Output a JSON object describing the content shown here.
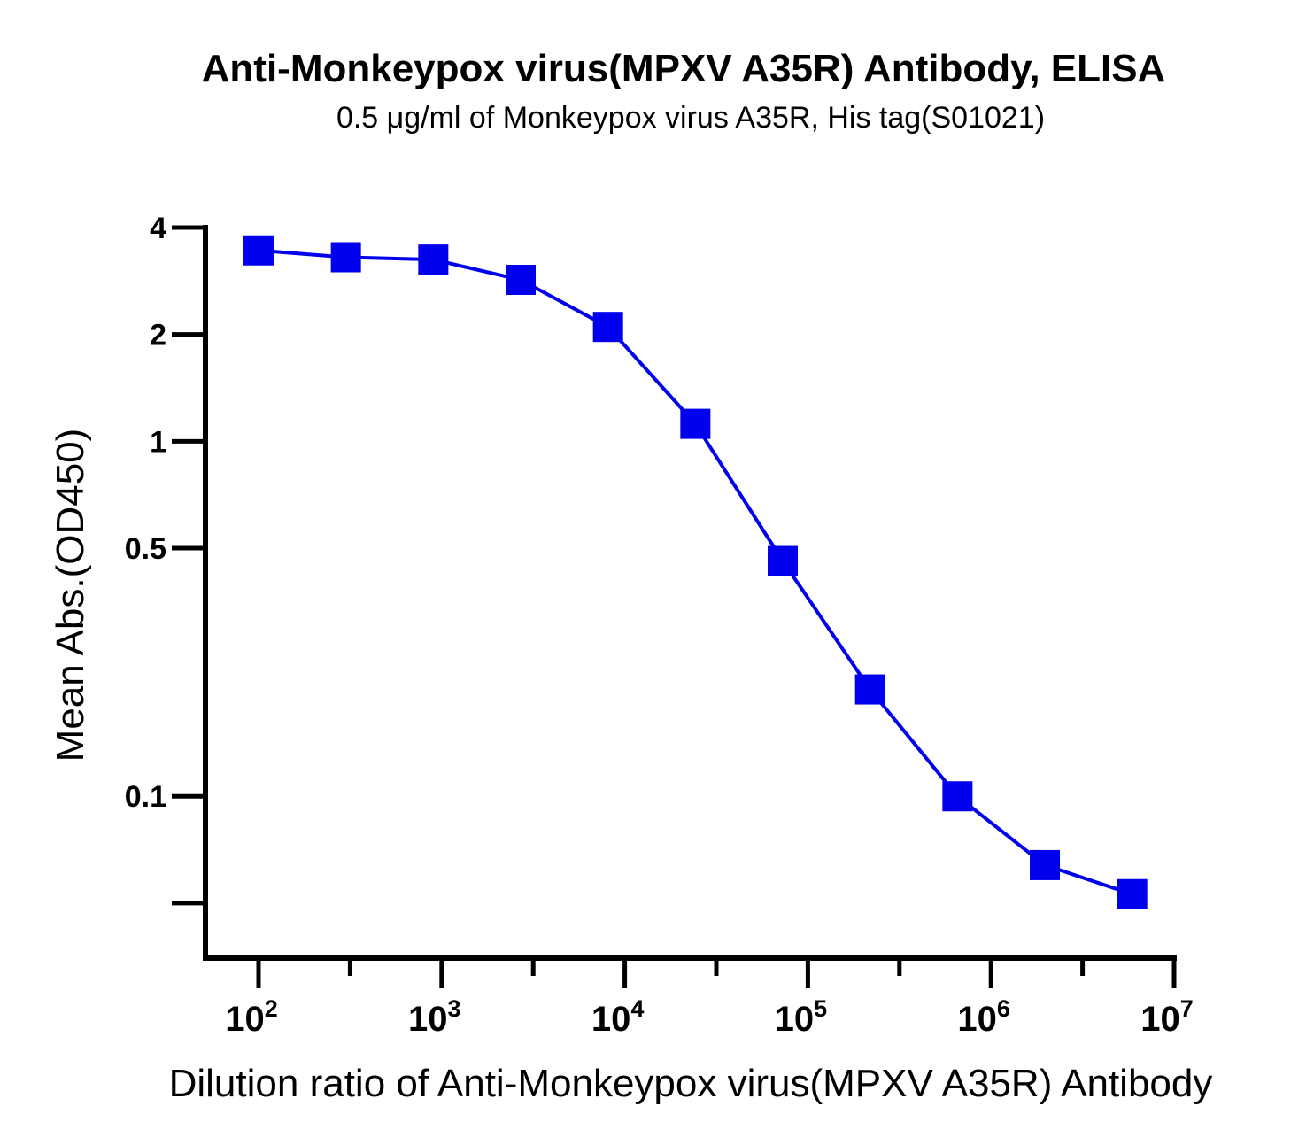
{
  "chart_data": {
    "type": "line",
    "title": "Anti-Monkeypox virus(MPXV A35R) Antibody, ELISA",
    "subtitle": "0.5 μg/ml of Monkeypox virus A35R, His tag(S01021)",
    "xlabel": "Dilution ratio of Anti-Monkeypox virus(MPXV A35R) Antibody",
    "ylabel": "Mean Abs.(OD450)",
    "x_scale": "log10",
    "y_scale": "log2",
    "xlim": [
      100,
      10000000
    ],
    "ylim": [
      0.035,
      4
    ],
    "x_ticks": [
      {
        "base": "10",
        "exp": "2",
        "value": 100
      },
      {
        "base": "10",
        "exp": "3",
        "value": 1000
      },
      {
        "base": "10",
        "exp": "4",
        "value": 10000
      },
      {
        "base": "10",
        "exp": "5",
        "value": 100000
      },
      {
        "base": "10",
        "exp": "6",
        "value": 1000000
      },
      {
        "base": "10",
        "exp": "7",
        "value": 10000000
      }
    ],
    "y_ticks": [
      {
        "label": "4",
        "value": 4
      },
      {
        "label": "2",
        "value": 2
      },
      {
        "label": "1",
        "value": 1
      },
      {
        "label": "0.5",
        "value": 0.5
      },
      {
        "label": "0.1",
        "value": 0.1
      },
      {
        "label": "",
        "value": 0.05
      }
    ],
    "color": "#0000EE",
    "marker": "square",
    "series": [
      {
        "x": [
          100,
          300,
          900,
          2700,
          8100,
          24300,
          72900,
          218700,
          656100,
          1968300,
          5904900
        ],
        "y": [
          3.45,
          3.3,
          3.25,
          2.85,
          2.1,
          1.12,
          0.46,
          0.2,
          0.1,
          0.064,
          0.053
        ]
      }
    ]
  }
}
